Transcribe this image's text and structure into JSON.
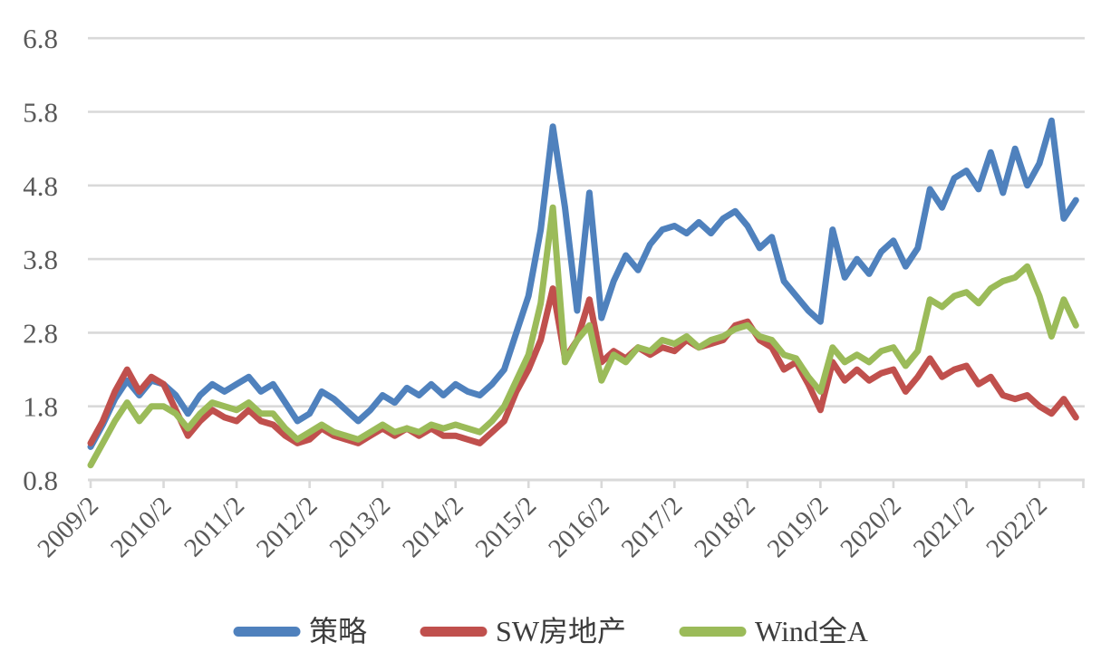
{
  "chart_data": {
    "type": "line",
    "title": "",
    "xlabel": "",
    "ylabel": "",
    "grid": "horizontal",
    "legend_position": "bottom",
    "x_axis": {
      "start": "2009/2",
      "step_months": 2,
      "tick_labels": [
        "2009/2",
        "2010/2",
        "2011/2",
        "2012/2",
        "2013/2",
        "2014/2",
        "2015/2",
        "2016/2",
        "2017/2",
        "2018/2",
        "2019/2",
        "2020/2",
        "2021/2",
        "2022/2"
      ]
    },
    "y_axis": {
      "ticks": [
        0.8,
        1.8,
        2.8,
        3.8,
        4.8,
        5.8,
        6.8
      ],
      "range": [
        0.8,
        6.8
      ]
    },
    "series": [
      {
        "key": "strategy",
        "name": "策略",
        "color": "#4F81BD",
        "values": [
          1.25,
          1.55,
          1.9,
          2.15,
          1.95,
          2.15,
          2.1,
          1.95,
          1.7,
          1.95,
          2.1,
          2.0,
          2.1,
          2.2,
          2.0,
          2.1,
          1.85,
          1.6,
          1.7,
          2.0,
          1.9,
          1.75,
          1.6,
          1.75,
          1.95,
          1.85,
          2.05,
          1.95,
          2.1,
          1.95,
          2.1,
          2.0,
          1.95,
          2.1,
          2.3,
          2.8,
          3.3,
          4.2,
          5.6,
          4.5,
          3.1,
          4.7,
          3.0,
          3.5,
          3.85,
          3.65,
          4.0,
          4.2,
          4.25,
          4.15,
          4.3,
          4.15,
          4.35,
          4.45,
          4.25,
          3.95,
          4.1,
          3.5,
          3.3,
          3.1,
          2.95,
          4.2,
          3.55,
          3.8,
          3.6,
          3.9,
          4.05,
          3.7,
          3.95,
          4.75,
          4.5,
          4.9,
          5.0,
          4.75,
          5.25,
          4.7,
          5.3,
          4.8,
          5.1,
          5.68,
          4.35,
          4.6
        ]
      },
      {
        "key": "sw-real-estate",
        "name": "SW房地产",
        "color": "#C0504D",
        "values": [
          1.3,
          1.6,
          2.0,
          2.3,
          2.0,
          2.2,
          2.1,
          1.75,
          1.4,
          1.6,
          1.75,
          1.65,
          1.6,
          1.75,
          1.6,
          1.55,
          1.4,
          1.3,
          1.35,
          1.5,
          1.4,
          1.35,
          1.3,
          1.4,
          1.5,
          1.4,
          1.5,
          1.4,
          1.5,
          1.4,
          1.4,
          1.35,
          1.3,
          1.45,
          1.6,
          2.0,
          2.3,
          2.7,
          3.4,
          2.45,
          2.7,
          3.25,
          2.4,
          2.55,
          2.45,
          2.6,
          2.5,
          2.6,
          2.55,
          2.7,
          2.6,
          2.65,
          2.7,
          2.9,
          2.95,
          2.7,
          2.6,
          2.3,
          2.4,
          2.1,
          1.75,
          2.4,
          2.15,
          2.3,
          2.15,
          2.25,
          2.3,
          2.0,
          2.2,
          2.45,
          2.2,
          2.3,
          2.35,
          2.1,
          2.2,
          1.95,
          1.9,
          1.95,
          1.8,
          1.7,
          1.9,
          1.65
        ]
      },
      {
        "key": "wind-all-a",
        "name": "Wind全A",
        "color": "#9BBB59",
        "values": [
          1.0,
          1.3,
          1.6,
          1.85,
          1.6,
          1.8,
          1.8,
          1.7,
          1.5,
          1.7,
          1.85,
          1.8,
          1.75,
          1.85,
          1.7,
          1.7,
          1.5,
          1.35,
          1.45,
          1.55,
          1.45,
          1.4,
          1.35,
          1.45,
          1.55,
          1.45,
          1.5,
          1.45,
          1.55,
          1.5,
          1.55,
          1.5,
          1.45,
          1.6,
          1.8,
          2.15,
          2.5,
          3.2,
          4.5,
          2.4,
          2.7,
          2.9,
          2.15,
          2.5,
          2.4,
          2.6,
          2.55,
          2.7,
          2.65,
          2.75,
          2.6,
          2.7,
          2.75,
          2.85,
          2.9,
          2.75,
          2.7,
          2.5,
          2.45,
          2.2,
          2.0,
          2.6,
          2.4,
          2.5,
          2.4,
          2.55,
          2.6,
          2.35,
          2.55,
          3.25,
          3.15,
          3.3,
          3.35,
          3.2,
          3.4,
          3.5,
          3.55,
          3.7,
          3.3,
          2.75,
          3.25,
          2.9
        ]
      }
    ]
  },
  "styles": {
    "background": "#FFFFFF",
    "grid_color": "#D9D9D9",
    "axis_color": "#D9D9D9",
    "tick_label_color": "#595959",
    "legend_text_color": "#3D3D3D"
  }
}
